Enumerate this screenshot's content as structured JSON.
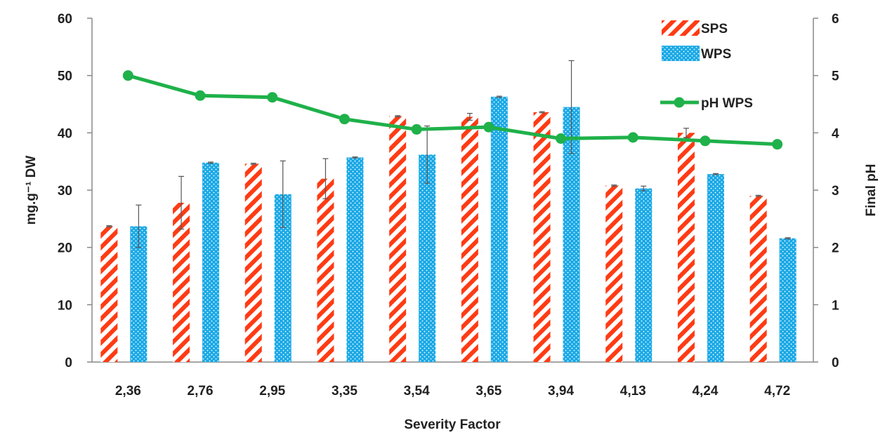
{
  "chart_data": {
    "type": "bar",
    "categories": [
      "2,36",
      "2,76",
      "2,95",
      "3,35",
      "3,54",
      "3,65",
      "3,94",
      "4,13",
      "4,24",
      "4,72"
    ],
    "series": [
      {
        "name": "SPS",
        "axis": "left",
        "kind": "bar",
        "color": "#ff3b14",
        "pattern": "diagonal-stripes",
        "values": [
          23.7,
          27.8,
          34.6,
          32.0,
          42.9,
          42.8,
          43.6,
          30.8,
          40.0,
          29.0
        ],
        "errors": [
          0.1,
          4.6,
          0.1,
          3.5,
          0.1,
          0.6,
          0.1,
          0.1,
          0.8,
          0.1
        ]
      },
      {
        "name": "WPS",
        "axis": "left",
        "kind": "bar",
        "color": "#1aa9e6",
        "pattern": "dots",
        "values": [
          23.7,
          34.8,
          29.3,
          35.7,
          36.2,
          46.3,
          44.5,
          30.3,
          32.8,
          21.6
        ],
        "errors": [
          3.7,
          0.1,
          5.8,
          0.1,
          5.0,
          0.1,
          8.1,
          0.4,
          0.1,
          0.1
        ]
      },
      {
        "name": "pH WPS",
        "axis": "right",
        "kind": "line",
        "color": "#1fb14a",
        "values": [
          5.0,
          4.65,
          4.62,
          4.24,
          4.06,
          4.1,
          3.9,
          3.92,
          3.86,
          3.8
        ]
      }
    ],
    "xlabel": "Severity Factor",
    "ylabel": "mg.g⁻¹ DW",
    "y2label": "Final pH",
    "ylim": [
      0,
      60
    ],
    "y2lim": [
      0,
      6
    ],
    "yticks": [
      "0",
      "10",
      "20",
      "30",
      "40",
      "50",
      "60"
    ],
    "y2ticks": [
      "0",
      "1",
      "2",
      "3",
      "4",
      "5",
      "6"
    ],
    "grid": false,
    "legend_position": "top-right"
  }
}
